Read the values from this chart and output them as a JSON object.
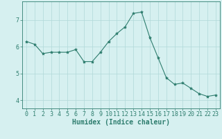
{
  "x": [
    0,
    1,
    2,
    3,
    4,
    5,
    6,
    7,
    8,
    9,
    10,
    11,
    12,
    13,
    14,
    15,
    16,
    17,
    18,
    19,
    20,
    21,
    22,
    23
  ],
  "y": [
    6.2,
    6.1,
    5.75,
    5.8,
    5.8,
    5.8,
    5.9,
    5.45,
    5.45,
    5.8,
    6.2,
    6.5,
    6.75,
    7.25,
    7.3,
    6.35,
    5.6,
    4.85,
    4.6,
    4.65,
    4.45,
    4.25,
    4.15,
    4.2
  ],
  "line_color": "#2e7d6e",
  "marker": "*",
  "marker_size": 3,
  "bg_color": "#d6f0f0",
  "grid_color": "#b0d8d8",
  "xlabel": "Humidex (Indice chaleur)",
  "xlim": [
    -0.5,
    23.5
  ],
  "ylim": [
    3.7,
    7.7
  ],
  "yticks": [
    4,
    5,
    6,
    7
  ],
  "xticks": [
    0,
    1,
    2,
    3,
    4,
    5,
    6,
    7,
    8,
    9,
    10,
    11,
    12,
    13,
    14,
    15,
    16,
    17,
    18,
    19,
    20,
    21,
    22,
    23
  ],
  "xlabel_fontsize": 7,
  "tick_fontsize": 6,
  "line_color_spine": "#2e7d6e",
  "label_color": "#2e7d6e"
}
